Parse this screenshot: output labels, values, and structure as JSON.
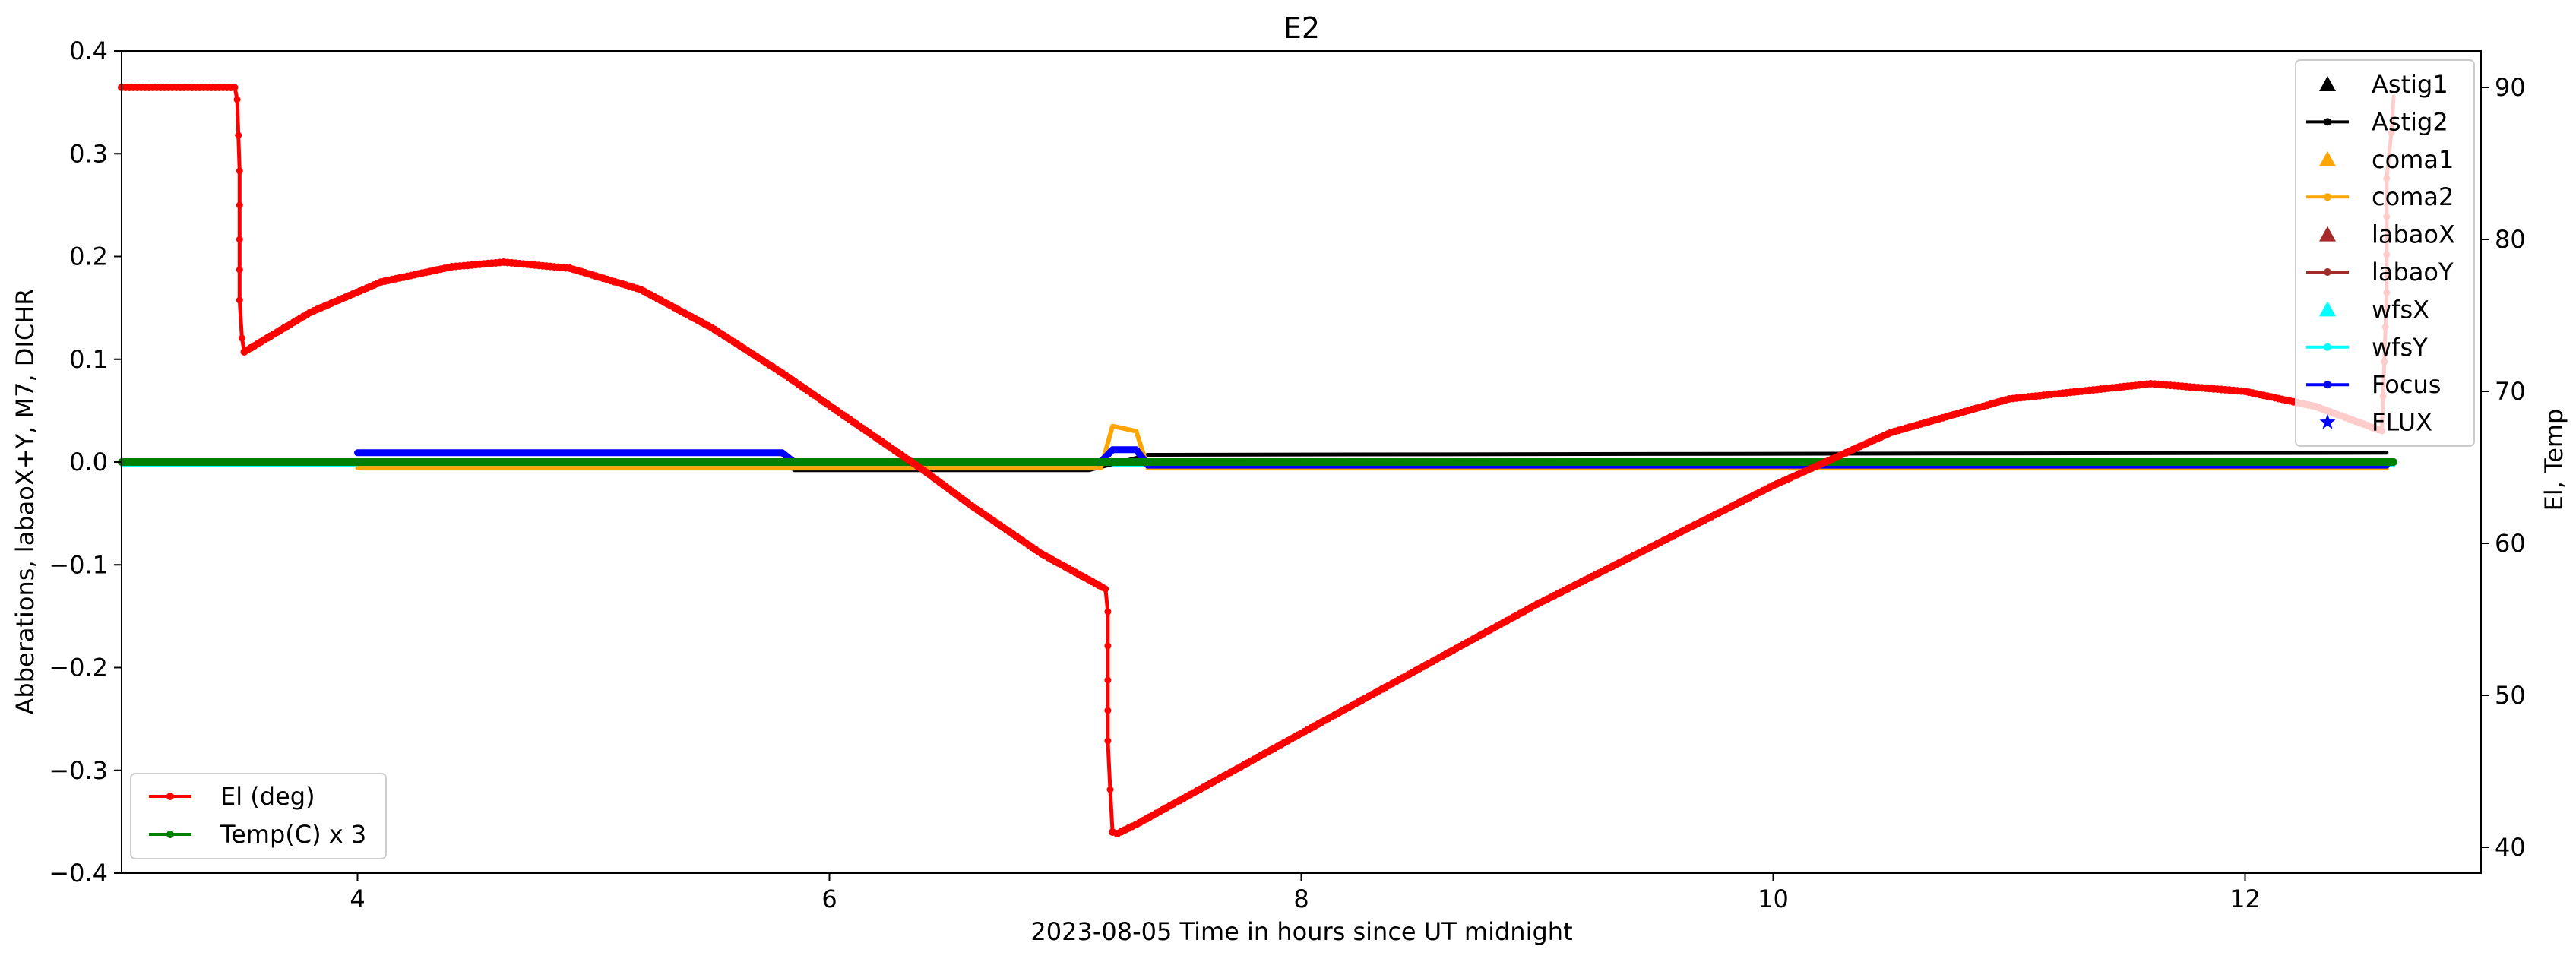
{
  "chart_data": {
    "type": "line",
    "title": "E2",
    "xlabel": "2023-08-05  Time in hours since UT midnight",
    "ylabel_left": "Abberations, labaoX+Y, M7, DICHR",
    "ylabel_right": "El, Temp",
    "xlim": [
      3.0,
      13.0
    ],
    "ylim_left": [
      -0.4,
      0.4
    ],
    "ylim_right": [
      38.3,
      92.4
    ],
    "xticks": [
      4,
      6,
      8,
      10,
      12
    ],
    "yticks_left": [
      -0.4,
      -0.3,
      -0.2,
      -0.1,
      0.0,
      0.1,
      0.2,
      0.3,
      0.4
    ],
    "yticks_left_labels": [
      "−0.4",
      "−0.3",
      "−0.2",
      "−0.1",
      "0.0",
      "0.1",
      "0.2",
      "0.3",
      "0.4"
    ],
    "yticks_right": [
      40,
      50,
      60,
      70,
      80,
      90
    ],
    "legend_right": {
      "placement": "top-right",
      "entries": [
        {
          "label": "Astig1",
          "color": "#000000",
          "marker": "triangle"
        },
        {
          "label": "Astig2",
          "color": "#000000",
          "marker": "line-dot"
        },
        {
          "label": "coma1",
          "color": "#ffa500",
          "marker": "triangle"
        },
        {
          "label": "coma2",
          "color": "#ffa500",
          "marker": "line-dot"
        },
        {
          "label": "labaoX",
          "color": "#a52a2a",
          "marker": "triangle"
        },
        {
          "label": "labaoY",
          "color": "#a52a2a",
          "marker": "line-dot"
        },
        {
          "label": "wfsX",
          "color": "#00ffff",
          "marker": "triangle"
        },
        {
          "label": "wfsY",
          "color": "#00ffff",
          "marker": "line-dot"
        },
        {
          "label": "Focus",
          "color": "#0000ff",
          "marker": "line-dot"
        },
        {
          "label": "FLUX",
          "color": "#0000ff",
          "marker": "star"
        }
      ]
    },
    "legend_left": {
      "placement": "lower-left",
      "entries": [
        {
          "label": "El (deg)",
          "color": "#ff0000",
          "marker": "line-dot"
        },
        {
          "label": "Temp(C) x 3",
          "color": "#008000",
          "marker": "line-dot"
        }
      ]
    },
    "series": [
      {
        "name": "El (deg)",
        "axis": "right",
        "color": "#ff0000",
        "x": [
          3.0,
          3.48,
          3.49,
          3.5,
          3.5,
          3.5,
          3.51,
          3.52,
          3.8,
          4.1,
          4.4,
          4.62,
          4.9,
          5.2,
          5.5,
          5.8,
          6.1,
          6.4,
          6.6,
          6.9,
          7.17,
          7.18,
          7.18,
          7.18,
          7.19,
          7.2,
          7.22,
          7.3,
          8.0,
          9.0,
          10.0,
          10.5,
          11.0,
          11.6,
          12.0,
          12.3,
          12.58,
          12.6,
          12.6,
          12.62,
          12.63
        ],
        "y": [
          90.0,
          90.0,
          89.2,
          84.5,
          80.0,
          76.0,
          73.5,
          72.6,
          75.2,
          77.2,
          78.2,
          78.5,
          78.1,
          76.7,
          74.2,
          71.2,
          68.0,
          64.8,
          62.5,
          59.3,
          57.0,
          55.5,
          51.0,
          47.0,
          43.8,
          41.0,
          40.9,
          41.5,
          47.5,
          56.0,
          63.8,
          67.3,
          69.5,
          70.5,
          70.0,
          69.0,
          67.4,
          76.5,
          84.0,
          87.0,
          89.4
        ]
      },
      {
        "name": "Temp(C) x 3",
        "axis": "left",
        "color": "#008000",
        "x": [
          3.0,
          12.63
        ],
        "y": [
          0.0,
          0.0
        ]
      },
      {
        "name": "Focus",
        "axis": "left",
        "color": "#0000ff",
        "x": [
          4.0,
          5.8,
          5.85,
          7.15,
          7.2,
          7.3,
          7.35,
          12.6
        ],
        "y": [
          0.009,
          0.009,
          0.0,
          0.0,
          0.012,
          0.012,
          -0.003,
          -0.003
        ]
      },
      {
        "name": "coma2",
        "axis": "left",
        "color": "#ffa500",
        "x": [
          4.0,
          7.15,
          7.2,
          7.3,
          7.35,
          12.6
        ],
        "y": [
          -0.006,
          -0.006,
          0.035,
          0.03,
          -0.006,
          -0.006
        ]
      },
      {
        "name": "Astig2",
        "axis": "left",
        "color": "#000000",
        "x": [
          5.85,
          7.1,
          7.35,
          12.6
        ],
        "y": [
          -0.008,
          -0.008,
          0.007,
          0.009
        ]
      },
      {
        "name": "wfsY",
        "axis": "left",
        "color": "#00ffff",
        "x": [
          3.0,
          12.63
        ],
        "y": [
          -0.003,
          -0.003
        ]
      }
    ]
  }
}
